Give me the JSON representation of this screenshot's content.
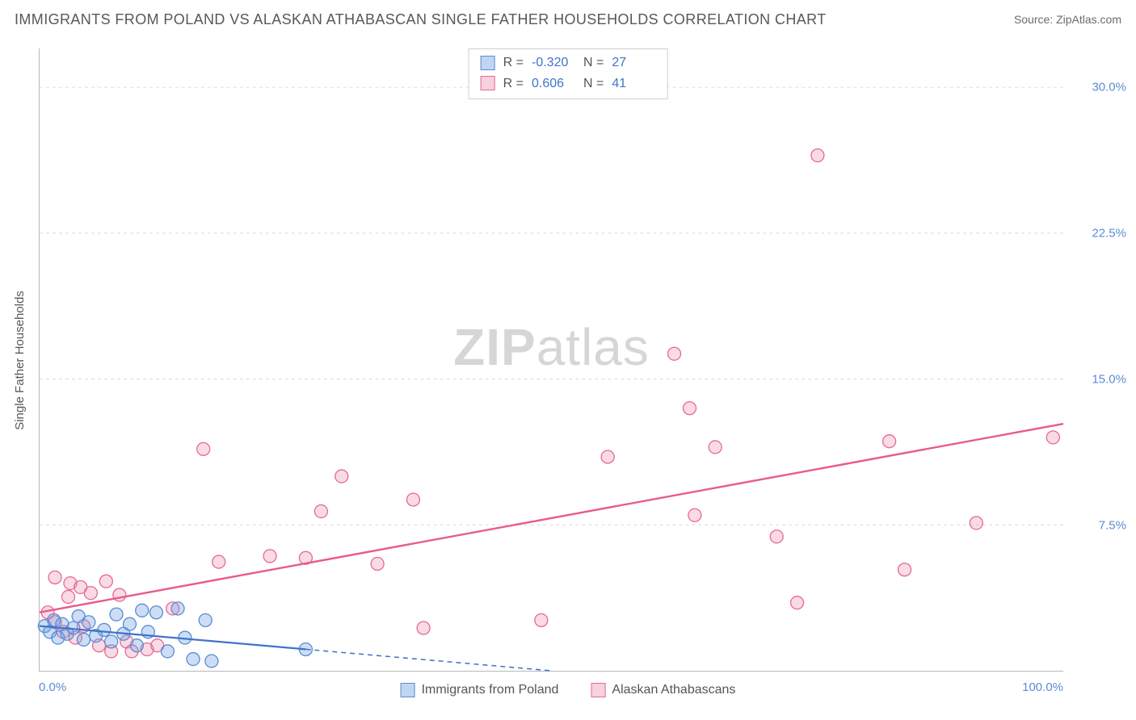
{
  "title": "IMMIGRANTS FROM POLAND VS ALASKAN ATHABASCAN SINGLE FATHER HOUSEHOLDS CORRELATION CHART",
  "source": "Source: ZipAtlas.com",
  "ylabel": "Single Father Households",
  "watermark_zip": "ZIP",
  "watermark_atlas": "atlas",
  "chart": {
    "type": "scatter",
    "xlim": [
      0,
      100
    ],
    "ylim": [
      0,
      32
    ],
    "x_unit": "%",
    "y_unit": "%",
    "xticks": [
      {
        "value": 0,
        "label": "0.0%"
      },
      {
        "value": 100,
        "label": "100.0%"
      }
    ],
    "yticks": [
      {
        "value": 7.5,
        "label": "7.5%"
      },
      {
        "value": 15.0,
        "label": "15.0%"
      },
      {
        "value": 22.5,
        "label": "22.5%"
      },
      {
        "value": 30.0,
        "label": "30.0%"
      }
    ],
    "background_color": "#ffffff",
    "grid_color": "#d9d9d9",
    "grid_dash": "4 4",
    "marker_radius": 8,
    "marker_stroke_width": 1.3,
    "series": [
      {
        "key": "poland",
        "label": "Immigrants from Poland",
        "color_fill": "rgba(110,160,225,0.35)",
        "color_stroke": "#5b8bd4",
        "r_value": "-0.320",
        "n_value": "27",
        "trend": {
          "x1": 0,
          "y1": 2.3,
          "x2": 50,
          "y2": 0,
          "solid_until_x": 26,
          "stroke": "#3e74c9",
          "stroke_width": 2.2,
          "dash": "6 5"
        },
        "points": [
          {
            "x": 0.5,
            "y": 2.3
          },
          {
            "x": 1.0,
            "y": 2.0
          },
          {
            "x": 1.4,
            "y": 2.6
          },
          {
            "x": 1.8,
            "y": 1.7
          },
          {
            "x": 2.2,
            "y": 2.4
          },
          {
            "x": 2.7,
            "y": 1.9
          },
          {
            "x": 3.3,
            "y": 2.2
          },
          {
            "x": 3.8,
            "y": 2.8
          },
          {
            "x": 4.3,
            "y": 1.6
          },
          {
            "x": 4.8,
            "y": 2.5
          },
          {
            "x": 5.5,
            "y": 1.8
          },
          {
            "x": 6.3,
            "y": 2.1
          },
          {
            "x": 7.0,
            "y": 1.5
          },
          {
            "x": 7.5,
            "y": 2.9
          },
          {
            "x": 8.2,
            "y": 1.9
          },
          {
            "x": 8.8,
            "y": 2.4
          },
          {
            "x": 9.5,
            "y": 1.3
          },
          {
            "x": 10.0,
            "y": 3.1
          },
          {
            "x": 10.6,
            "y": 2.0
          },
          {
            "x": 11.4,
            "y": 3.0
          },
          {
            "x": 12.5,
            "y": 1.0
          },
          {
            "x": 13.5,
            "y": 3.2
          },
          {
            "x": 14.2,
            "y": 1.7
          },
          {
            "x": 15.0,
            "y": 0.6
          },
          {
            "x": 16.2,
            "y": 2.6
          },
          {
            "x": 16.8,
            "y": 0.5
          },
          {
            "x": 26.0,
            "y": 1.1
          }
        ]
      },
      {
        "key": "athabascan",
        "label": "Alaskan Athabascans",
        "color_fill": "rgba(238,140,175,0.32)",
        "color_stroke": "#e46a94",
        "r_value": "0.606",
        "n_value": "41",
        "trend": {
          "x1": 0,
          "y1": 3.0,
          "x2": 100,
          "y2": 12.7,
          "solid_until_x": 100,
          "stroke": "#e85b8b",
          "stroke_width": 2.4,
          "dash": null
        },
        "points": [
          {
            "x": 0.8,
            "y": 3.0
          },
          {
            "x": 1.5,
            "y": 2.5
          },
          {
            "x": 1.5,
            "y": 4.8
          },
          {
            "x": 2.3,
            "y": 2.0
          },
          {
            "x": 2.8,
            "y": 3.8
          },
          {
            "x": 3.0,
            "y": 4.5
          },
          {
            "x": 3.5,
            "y": 1.7
          },
          {
            "x": 4.0,
            "y": 4.3
          },
          {
            "x": 4.3,
            "y": 2.3
          },
          {
            "x": 5.0,
            "y": 4.0
          },
          {
            "x": 5.8,
            "y": 1.3
          },
          {
            "x": 6.5,
            "y": 4.6
          },
          {
            "x": 7.0,
            "y": 1.0
          },
          {
            "x": 7.8,
            "y": 3.9
          },
          {
            "x": 8.5,
            "y": 1.5
          },
          {
            "x": 9.0,
            "y": 1.0
          },
          {
            "x": 10.5,
            "y": 1.1
          },
          {
            "x": 11.5,
            "y": 1.3
          },
          {
            "x": 13.0,
            "y": 3.2
          },
          {
            "x": 16.0,
            "y": 11.4
          },
          {
            "x": 17.5,
            "y": 5.6
          },
          {
            "x": 22.5,
            "y": 5.9
          },
          {
            "x": 26.0,
            "y": 5.8
          },
          {
            "x": 27.5,
            "y": 8.2
          },
          {
            "x": 29.5,
            "y": 10.0
          },
          {
            "x": 33.0,
            "y": 5.5
          },
          {
            "x": 36.5,
            "y": 8.8
          },
          {
            "x": 37.5,
            "y": 2.2
          },
          {
            "x": 49.0,
            "y": 2.6
          },
          {
            "x": 55.5,
            "y": 11.0
          },
          {
            "x": 62.0,
            "y": 16.3
          },
          {
            "x": 63.5,
            "y": 13.5
          },
          {
            "x": 64.0,
            "y": 8.0
          },
          {
            "x": 66.0,
            "y": 11.5
          },
          {
            "x": 72.0,
            "y": 6.9
          },
          {
            "x": 74.0,
            "y": 3.5
          },
          {
            "x": 76.0,
            "y": 26.5
          },
          {
            "x": 83.0,
            "y": 11.8
          },
          {
            "x": 84.5,
            "y": 5.2
          },
          {
            "x": 91.5,
            "y": 7.6
          },
          {
            "x": 99.0,
            "y": 12.0
          }
        ]
      }
    ]
  },
  "stat_legend": {
    "r_label": "R  =",
    "n_label": "N  ="
  }
}
